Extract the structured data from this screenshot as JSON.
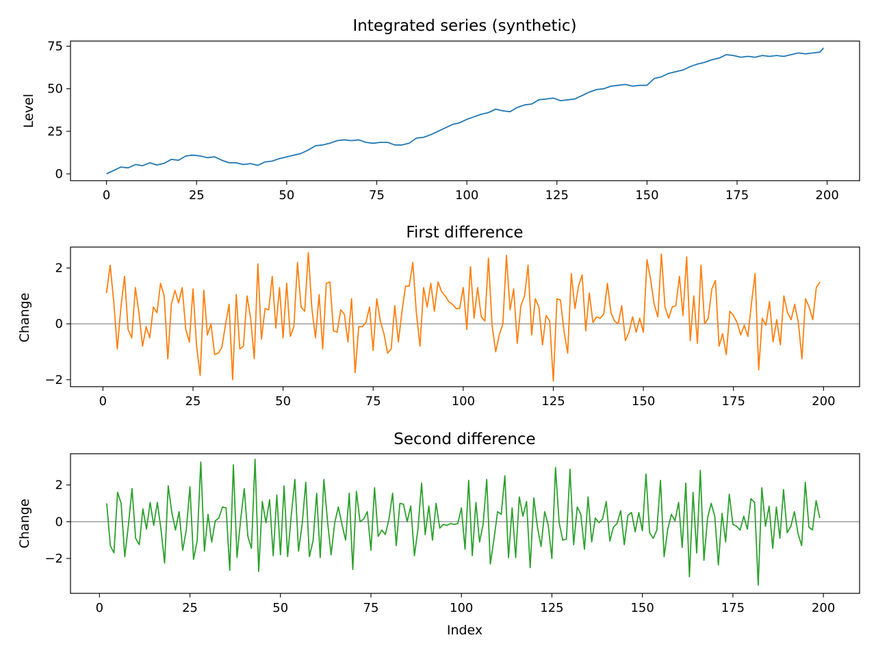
{
  "chart_data": [
    {
      "type": "line",
      "title": "Integrated series (synthetic)",
      "xlabel": "",
      "ylabel": "Level",
      "xlim": [
        -10,
        209
      ],
      "ylim": [
        -4,
        78
      ],
      "xticks": [
        0,
        25,
        50,
        75,
        100,
        125,
        150,
        175,
        200
      ],
      "yticks": [
        0,
        25,
        50,
        75
      ],
      "zero_line": false,
      "color": "#1f77b4",
      "series": [
        {
          "x": [
            0,
            2,
            4,
            6,
            8,
            10,
            12,
            14,
            16,
            18,
            20,
            22,
            24,
            26,
            28,
            30,
            32,
            34,
            36,
            38,
            40,
            42,
            44,
            46,
            48,
            50,
            52,
            54,
            56,
            58,
            60,
            62,
            64,
            66,
            68,
            70,
            72,
            74,
            76,
            78,
            80,
            82,
            84,
            86,
            88,
            90,
            92,
            94,
            96,
            98,
            100,
            102,
            104,
            106,
            108,
            110,
            112,
            114,
            116,
            118,
            120,
            122,
            124,
            126,
            128,
            130,
            132,
            134,
            136,
            138,
            140,
            142,
            144,
            146,
            148,
            150,
            152,
            154,
            156,
            158,
            160,
            162,
            164,
            166,
            168,
            170,
            172,
            174,
            176,
            178,
            180,
            182,
            184,
            186,
            188,
            190,
            192,
            194,
            196,
            198,
            199
          ],
          "y": [
            0,
            2,
            4,
            3.5,
            5.5,
            4.8,
            6.5,
            5.2,
            6.2,
            8.5,
            8,
            10.5,
            11,
            10.5,
            9.5,
            10,
            8,
            6.5,
            6.5,
            5.5,
            6,
            5,
            7,
            7.5,
            9,
            10,
            11,
            12,
            14,
            16.5,
            17,
            18,
            19.5,
            20,
            19.5,
            20,
            18.5,
            18,
            18.5,
            18.5,
            17,
            17,
            18,
            21,
            21.5,
            23,
            25,
            27,
            29,
            30,
            32,
            33.5,
            35,
            36,
            38,
            37,
            36.5,
            39,
            40.5,
            41,
            43.5,
            44,
            44.5,
            43,
            43.5,
            44,
            46,
            48,
            49.5,
            50,
            51.5,
            52,
            52.5,
            51.5,
            52,
            52,
            56,
            57,
            59,
            60,
            61,
            63,
            64.5,
            65.5,
            67,
            68,
            70,
            69.5,
            68.5,
            69,
            68.5,
            69.5,
            69,
            69.5,
            69,
            70,
            71,
            70.5,
            71,
            71.5,
            74
          ]
        }
      ]
    },
    {
      "type": "line",
      "title": "First difference",
      "xlabel": "",
      "ylabel": "Change",
      "xlim": [
        -9,
        210
      ],
      "ylim": [
        -2.25,
        2.75
      ],
      "xticks": [
        0,
        25,
        50,
        75,
        100,
        125,
        150,
        175,
        200
      ],
      "yticks": [
        -2,
        0,
        2
      ],
      "zero_line": true,
      "color": "#ff7f0e",
      "series": [
        {
          "x": [
            1,
            2,
            3,
            4,
            5,
            6,
            7,
            8,
            9,
            10,
            11,
            12,
            13,
            14,
            15,
            16,
            17,
            18,
            19,
            20,
            21,
            22,
            23,
            24,
            25,
            26,
            27,
            28,
            29,
            30,
            31,
            32,
            33,
            34,
            35,
            36,
            37,
            38,
            39,
            40,
            41,
            42,
            43,
            44,
            45,
            46,
            47,
            48,
            49,
            50,
            51,
            52,
            53,
            54,
            55,
            56,
            57,
            58,
            59,
            60,
            61,
            62,
            63,
            64,
            65,
            66,
            67,
            68,
            69,
            70,
            71,
            72,
            73,
            74,
            75,
            76,
            77,
            78,
            79,
            80,
            81,
            82,
            83,
            84,
            85,
            86,
            87,
            88,
            89,
            90,
            91,
            92,
            93,
            94,
            95,
            96,
            97,
            98,
            99,
            100,
            101,
            102,
            103,
            104,
            105,
            106,
            107,
            108,
            109,
            110,
            111,
            112,
            113,
            114,
            115,
            116,
            117,
            118,
            119,
            120,
            121,
            122,
            123,
            124,
            125,
            126,
            127,
            128,
            129,
            130,
            131,
            132,
            133,
            134,
            135,
            136,
            137,
            138,
            139,
            140,
            141,
            142,
            143,
            144,
            145,
            146,
            147,
            148,
            149,
            150,
            151,
            152,
            153,
            154,
            155,
            156,
            157,
            158,
            159,
            160,
            161,
            162,
            163,
            164,
            165,
            166,
            167,
            168,
            169,
            170,
            171,
            172,
            173,
            174,
            175,
            176,
            177,
            178,
            179,
            180,
            181,
            182,
            183,
            184,
            185,
            186,
            187,
            188,
            189,
            190,
            191,
            192,
            193,
            194,
            195,
            196,
            197,
            198,
            199
          ],
          "y": [
            1.1,
            2.1,
            0.8,
            -0.9,
            0.6,
            1.7,
            -0.2,
            -0.5,
            1.3,
            0.4,
            -0.8,
            -0.1,
            -0.5,
            0.6,
            0.4,
            1.45,
            1.0,
            -1.25,
            0.7,
            1.2,
            0.75,
            1.3,
            -0.2,
            -0.65,
            1.25,
            -0.8,
            -1.85,
            1.2,
            -0.4,
            0.0,
            -1.1,
            -1.05,
            -0.85,
            -0.05,
            0.7,
            -2.0,
            1.05,
            -0.9,
            -0.8,
            1.0,
            0.2,
            -1.25,
            2.15,
            -0.55,
            0.55,
            0.5,
            1.7,
            -0.15,
            1.3,
            -0.5,
            1.45,
            -0.45,
            -0.1,
            2.2,
            0.6,
            0.45,
            2.55,
            0.55,
            -0.5,
            1.05,
            -0.9,
            1.45,
            1.5,
            -0.25,
            -0.3,
            0.5,
            0.35,
            -0.65,
            0.9,
            -1.75,
            -0.1,
            -0.1,
            0.05,
            0.6,
            -0.95,
            0.9,
            0.1,
            -0.35,
            -1.05,
            -0.9,
            0.65,
            -0.65,
            0.45,
            1.35,
            1.35,
            2.2,
            0.4,
            -0.8,
            1.3,
            0.6,
            1.45,
            0.45,
            1.5,
            1.15,
            1.0,
            0.8,
            0.7,
            0.55,
            0.55,
            1.3,
            -0.2,
            2.05,
            0.2,
            1.3,
            0.25,
            0.1,
            2.35,
            -0.05,
            -1.0,
            -0.4,
            0.0,
            2.45,
            0.5,
            1.25,
            -0.7,
            0.65,
            1.0,
            2.1,
            -0.4,
            0.9,
            0.6,
            -0.75,
            0.3,
            0.1,
            -2.05,
            0.9,
            0.85,
            -0.3,
            -1.05,
            1.8,
            0.55,
            1.35,
            1.75,
            -0.25,
            1.1,
            0.05,
            0.25,
            0.2,
            0.35,
            1.45,
            0.4,
            0.1,
            0.0,
            0.65,
            -0.6,
            -0.3,
            0.25,
            -0.3,
            0.2,
            -0.3,
            2.3,
            1.6,
            0.7,
            0.25,
            2.5,
            0.6,
            0.2,
            0.6,
            0.65,
            1.7,
            0.3,
            2.4,
            -0.6,
            1.0,
            -0.7,
            2.1,
            0.0,
            0.2,
            1.25,
            1.55,
            -0.8,
            -0.35,
            -1.1,
            0.45,
            0.3,
            0.05,
            -0.4,
            -0.05,
            -0.45,
            0.75,
            1.8,
            -1.65,
            0.2,
            -0.05,
            0.8,
            -0.65,
            0.15,
            -0.75,
            1.0,
            0.4,
            0.15,
            0.7,
            0.05,
            -1.25,
            0.9,
            0.6,
            0.15,
            1.3,
            1.5
          ]
        }
      ]
    },
    {
      "type": "line",
      "title": "Second difference",
      "xlabel": "Index",
      "ylabel": "Change",
      "xlim": [
        -8,
        210
      ],
      "ylim": [
        -3.9,
        3.7
      ],
      "xticks": [
        0,
        25,
        50,
        75,
        100,
        125,
        150,
        175,
        200
      ],
      "yticks": [
        -2,
        0,
        2
      ],
      "zero_line": true,
      "color": "#2ca02c",
      "series": [
        {
          "x": [
            2,
            3,
            4,
            5,
            6,
            7,
            8,
            9,
            10,
            11,
            12,
            13,
            14,
            15,
            16,
            17,
            18,
            19,
            20,
            21,
            22,
            23,
            24,
            25,
            26,
            27,
            28,
            29,
            30,
            31,
            32,
            33,
            34,
            35,
            36,
            37,
            38,
            39,
            40,
            41,
            42,
            43,
            44,
            45,
            46,
            47,
            48,
            49,
            50,
            51,
            52,
            53,
            54,
            55,
            56,
            57,
            58,
            59,
            60,
            61,
            62,
            63,
            64,
            65,
            66,
            67,
            68,
            69,
            70,
            71,
            72,
            73,
            74,
            75,
            76,
            77,
            78,
            79,
            80,
            81,
            82,
            83,
            84,
            85,
            86,
            87,
            88,
            89,
            90,
            91,
            92,
            93,
            94,
            95,
            96,
            97,
            98,
            99,
            100,
            101,
            102,
            103,
            104,
            105,
            106,
            107,
            108,
            109,
            110,
            111,
            112,
            113,
            114,
            115,
            116,
            117,
            118,
            119,
            120,
            121,
            122,
            123,
            124,
            125,
            126,
            127,
            128,
            129,
            130,
            131,
            132,
            133,
            134,
            135,
            136,
            137,
            138,
            139,
            140,
            141,
            142,
            143,
            144,
            145,
            146,
            147,
            148,
            149,
            150,
            151,
            152,
            153,
            154,
            155,
            156,
            157,
            158,
            159,
            160,
            161,
            162,
            163,
            164,
            165,
            166,
            167,
            168,
            169,
            170,
            171,
            172,
            173,
            174,
            175,
            176,
            177,
            178,
            179,
            180,
            181,
            182,
            183,
            184,
            185,
            186,
            187,
            188,
            189,
            190,
            191,
            192,
            193,
            194,
            195,
            196,
            197,
            198,
            199
          ],
          "y": [
            1.0,
            -1.3,
            -1.7,
            1.6,
            1.0,
            -1.9,
            -0.2,
            1.8,
            -0.9,
            -1.25,
            0.7,
            -0.4,
            1.05,
            -0.2,
            1.05,
            -0.4,
            -2.25,
            1.95,
            0.5,
            -0.45,
            0.55,
            -1.55,
            -0.45,
            1.9,
            -2.05,
            -1.05,
            3.25,
            -1.6,
            0.4,
            -1.1,
            0.05,
            0.2,
            0.8,
            0.75,
            -2.65,
            3.1,
            -1.95,
            0.1,
            1.8,
            -0.8,
            -1.45,
            3.4,
            -2.7,
            1.1,
            -0.05,
            1.2,
            -1.85,
            1.45,
            -1.8,
            1.95,
            -1.9,
            0.35,
            2.3,
            -1.6,
            -0.15,
            2.15,
            -1.9,
            -1.05,
            1.55,
            -1.95,
            2.3,
            0.05,
            -1.8,
            -0.05,
            0.8,
            -0.15,
            -1.0,
            1.55,
            -2.6,
            1.65,
            0.0,
            0.15,
            0.55,
            -1.55,
            1.85,
            -0.8,
            -0.45,
            -0.7,
            0.15,
            1.55,
            -1.3,
            1.0,
            0.95,
            0.0,
            0.85,
            -1.85,
            -0.4,
            2.1,
            -0.7,
            0.85,
            -1.0,
            1.0,
            -0.35,
            -0.15,
            -0.2,
            -0.1,
            -0.15,
            -0.1,
            0.75,
            -1.5,
            2.25,
            -1.85,
            1.05,
            -1.1,
            -0.15,
            2.3,
            -2.3,
            -0.95,
            0.55,
            0.4,
            2.5,
            -1.95,
            0.75,
            -1.95,
            1.35,
            0.3,
            1.1,
            -2.5,
            1.3,
            -0.3,
            -1.35,
            0.55,
            -0.2,
            -2.0,
            2.95,
            -0.05,
            -1.0,
            -0.95,
            2.85,
            -1.25,
            0.8,
            0.4,
            -1.5,
            1.35,
            -1.1,
            0.2,
            -0.05,
            0.15,
            1.1,
            -1.05,
            -0.3,
            -0.1,
            0.6,
            -1.25,
            0.35,
            0.5,
            -0.55,
            0.5,
            -0.5,
            2.6,
            -0.6,
            -0.9,
            -0.45,
            2.25,
            -1.9,
            -0.4,
            0.4,
            0.05,
            1.05,
            -1.4,
            2.1,
            -3.0,
            1.6,
            -1.7,
            2.8,
            -2.1,
            0.2,
            1.0,
            0.3,
            -2.35,
            0.45,
            -1.1,
            1.5,
            -0.15,
            -0.25,
            -0.45,
            0.3,
            -0.4,
            1.25,
            1.05,
            -3.45,
            1.85,
            -0.25,
            0.85,
            -1.45,
            0.8,
            -0.9,
            1.75,
            -0.6,
            -0.25,
            0.55,
            -0.65,
            -1.3,
            2.15,
            -0.3,
            -0.45,
            1.15,
            0.2
          ]
        }
      ]
    }
  ]
}
